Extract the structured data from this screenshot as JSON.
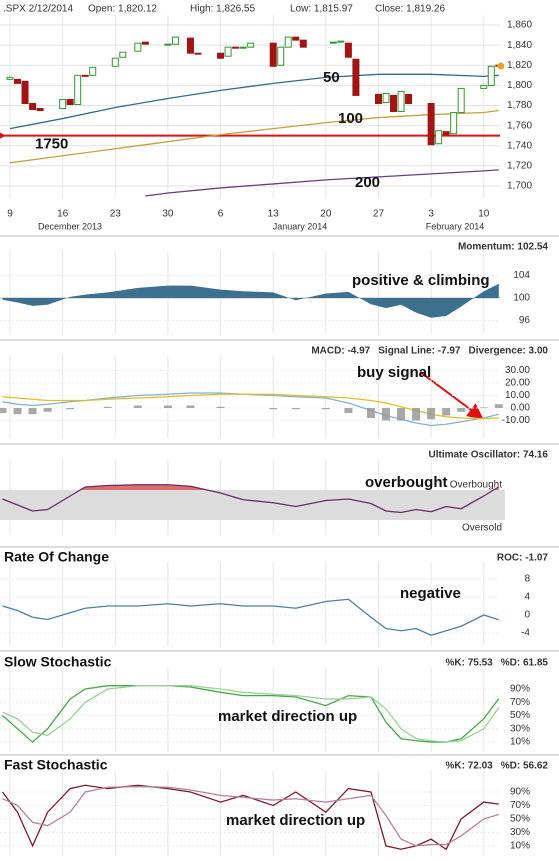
{
  "chart_data": [
    {
      "type": "candlestick",
      "title": ".SPX 2/12/2014",
      "stats": [
        "Open: 1,820.12",
        "High: 1,826.55",
        "Low: 1,815.97",
        "Close: 1,819.26"
      ],
      "x": [
        9,
        10,
        11,
        12,
        13,
        16,
        17,
        18,
        19,
        20,
        23,
        24,
        26,
        27,
        30,
        31,
        33,
        34,
        37,
        38,
        39,
        40,
        41,
        44,
        45,
        46,
        47,
        48,
        52,
        53,
        54,
        55,
        58,
        59,
        60,
        61,
        62,
        65,
        66,
        67,
        68,
        69,
        72,
        73,
        74
      ],
      "open": [
        1806,
        1806,
        1804,
        1782,
        1777,
        1777,
        1786,
        1781,
        1810,
        1810,
        1819,
        1828,
        1834,
        1843,
        1841,
        1841,
        1847,
        1832,
        1832,
        1829,
        1838,
        1838,
        1838,
        1842,
        1820,
        1838,
        1848,
        1845,
        1842,
        1843,
        1842,
        1826,
        1791,
        1783,
        1790,
        1774,
        1791,
        1782,
        1742,
        1754,
        1752,
        1773,
        1797,
        1800,
        1820.12
      ],
      "close": [
        1808,
        1802,
        1782,
        1776,
        1775,
        1786,
        1781,
        1810,
        1809,
        1818,
        1827,
        1833,
        1842,
        1841,
        1841,
        1848,
        1832,
        1831,
        1827,
        1838,
        1837,
        1838,
        1842,
        1819,
        1838,
        1848,
        1845,
        1838,
        1843,
        1844,
        1828,
        1790,
        1782,
        1792,
        1774,
        1794,
        1782,
        1741,
        1755,
        1751,
        1773,
        1797,
        1800,
        1819,
        1819.26
      ],
      "up_color": "#2e9a2e",
      "down_color": "#a31515",
      "series": [
        {
          "name": "50",
          "color": "#2f6b95",
          "x": [
            9,
            16,
            23,
            30,
            37,
            44,
            51,
            58,
            65,
            72,
            74
          ],
          "values": [
            1757,
            1767,
            1778,
            1787,
            1795,
            1802,
            1808,
            1811,
            1811,
            1809,
            1810
          ]
        },
        {
          "name": "100",
          "color": "#c9a13a",
          "x": [
            9,
            16,
            23,
            30,
            37,
            44,
            51,
            58,
            65,
            72,
            74
          ],
          "values": [
            1723,
            1730,
            1737,
            1744,
            1751,
            1757,
            1763,
            1768,
            1771,
            1773,
            1775
          ]
        },
        {
          "name": "200",
          "color": "#6a3d8a",
          "x": [
            27,
            30,
            37,
            44,
            51,
            58,
            65,
            72,
            74
          ],
          "values": [
            1690,
            1693,
            1698,
            1702,
            1706,
            1709,
            1712,
            1715,
            1716
          ]
        }
      ],
      "hline": 1750,
      "hline_color": "#e01010",
      "ylim": [
        1690,
        1870
      ],
      "yticks": [
        {
          "value": 1700,
          "label": "1,700"
        },
        {
          "value": 1720,
          "label": "1,720"
        },
        {
          "value": 1740,
          "label": "1,740"
        },
        {
          "value": 1760,
          "label": "1,760"
        },
        {
          "value": 1780,
          "label": "1,780"
        },
        {
          "value": 1800,
          "label": "1,800"
        },
        {
          "value": 1820,
          "label": "1,820"
        },
        {
          "value": 1840,
          "label": "1,840"
        },
        {
          "value": 1860,
          "label": "1,860"
        }
      ],
      "xticks": [
        {
          "value": 9,
          "label": "9"
        },
        {
          "value": 16,
          "label": "16"
        },
        {
          "value": 23,
          "label": "23"
        },
        {
          "value": 30,
          "label": "30"
        },
        {
          "value": 37,
          "label": "6"
        },
        {
          "value": 44,
          "label": "13"
        },
        {
          "value": 51,
          "label": "20"
        },
        {
          "value": 58,
          "label": "27"
        },
        {
          "value": 65,
          "label": "3"
        },
        {
          "value": 72,
          "label": "10"
        }
      ],
      "month_labels": [
        "December 2013",
        "January 2014",
        "February 2014"
      ]
    },
    {
      "type": "area",
      "baseline": 100,
      "x": [
        8,
        10,
        12,
        14,
        17,
        19,
        22,
        26,
        30,
        33,
        37,
        40,
        44,
        47,
        51,
        54,
        57,
        59,
        61,
        63,
        65,
        67,
        69,
        72,
        74
      ],
      "series": [
        {
          "name": "Momentum: 102.54",
          "color": "#3d6f8f",
          "values": [
            99.7,
            99.2,
            98.6,
            98.8,
            100.2,
            100.6,
            101.0,
            101.8,
            102.2,
            102.2,
            101.5,
            101.2,
            101.0,
            99.6,
            100.8,
            101.1,
            98.9,
            98.2,
            98.8,
            97.4,
            96.5,
            96.8,
            98.5,
            101.2,
            102.54
          ]
        }
      ],
      "ylim": [
        93.5,
        107
      ],
      "yticks": [
        96,
        100,
        104
      ],
      "annotations": [
        "positive & climbing"
      ]
    },
    {
      "type": "line",
      "x": [
        8,
        10,
        12,
        14,
        17,
        19,
        22,
        26,
        30,
        33,
        37,
        40,
        44,
        47,
        51,
        54,
        57,
        59,
        61,
        63,
        65,
        67,
        69,
        72,
        74
      ],
      "series": [
        {
          "name": "MACD: -4.97",
          "color": "#7fb2d8",
          "values": [
            5,
            3,
            2,
            3,
            5,
            6,
            8,
            10,
            11,
            12,
            12,
            11,
            10,
            9,
            8,
            4,
            -2,
            -6,
            -9,
            -12,
            -14,
            -13,
            -11,
            -8,
            -4.97
          ]
        },
        {
          "name": "Signal Line: -7.97",
          "color": "#e3bd22",
          "values": [
            9,
            8,
            7,
            6,
            6,
            6,
            7,
            8,
            9,
            10,
            11,
            11,
            11,
            10,
            9,
            8,
            6,
            4,
            1,
            -2,
            -5,
            -7,
            -8,
            -8.5,
            -7.97
          ]
        },
        {
          "name": "Divergence: 3.00",
          "color": "#999999",
          "style": "bar",
          "values": [
            -4,
            -5,
            -5,
            -3,
            -1,
            0,
            1,
            2,
            2,
            2,
            1,
            0,
            -1,
            -1,
            -1,
            -4,
            -8,
            -10,
            -10,
            -10,
            -9,
            -6,
            -3,
            0.5,
            3.0
          ]
        }
      ],
      "ylim": [
        -24,
        36
      ],
      "yticks": [
        {
          "value": 30,
          "label": "30.00"
        },
        {
          "value": 20,
          "label": "20.00"
        },
        {
          "value": 10,
          "label": "10.00"
        },
        {
          "value": 0,
          "label": "0.00"
        },
        {
          "value": -10,
          "label": "-10.00"
        }
      ],
      "annotations": [
        "buy signal"
      ]
    },
    {
      "type": "line",
      "x": [
        8,
        10,
        12,
        14,
        17,
        19,
        22,
        26,
        30,
        33,
        37,
        40,
        44,
        47,
        51,
        54,
        57,
        59,
        61,
        63,
        65,
        67,
        69,
        72,
        74
      ],
      "series": [
        {
          "name": "Ultimate Oscillator: 74.16",
          "color": "#6a2a6a",
          "values": [
            58,
            50,
            42,
            44,
            62,
            74,
            76,
            77,
            77,
            75,
            66,
            57,
            53,
            48,
            56,
            58,
            52,
            42,
            40,
            44,
            41,
            48,
            45,
            62,
            74.16
          ]
        }
      ],
      "ylim": [
        10,
        100
      ],
      "thresholds": [
        {
          "value": 70,
          "label": "Overbought",
          "color": "#d9534f"
        },
        {
          "value": 30,
          "label": "Oversold",
          "color": "#6cbf6c"
        }
      ],
      "annotations": [
        "overbought"
      ]
    },
    {
      "type": "line",
      "title": "Rate Of Change",
      "x": [
        8,
        10,
        12,
        14,
        17,
        19,
        22,
        26,
        30,
        33,
        37,
        40,
        44,
        47,
        51,
        54,
        57,
        59,
        61,
        63,
        65,
        67,
        69,
        72,
        74
      ],
      "series": [
        {
          "name": "ROC: -1.07",
          "color": "#4a7fa8",
          "values": [
            2,
            1,
            -0.5,
            -1,
            0.5,
            1.5,
            2,
            2,
            2.5,
            2,
            2.5,
            2,
            2,
            1.5,
            3,
            3.5,
            -0.5,
            -3,
            -3.5,
            -3,
            -4.5,
            -3.5,
            -2.5,
            0,
            -1.07
          ]
        }
      ],
      "ylim": [
        -7,
        10
      ],
      "yticks": [
        8,
        4,
        0,
        -4
      ],
      "annotations": [
        "negative"
      ]
    },
    {
      "type": "line",
      "title": "Slow Stochastic",
      "x": [
        8,
        10,
        12,
        14,
        17,
        19,
        22,
        26,
        30,
        33,
        37,
        40,
        44,
        47,
        51,
        54,
        57,
        59,
        61,
        63,
        65,
        67,
        69,
        72,
        74
      ],
      "series": [
        {
          "name": "%K: 75.53",
          "color": "#45a845",
          "values": [
            50,
            30,
            10,
            30,
            75,
            90,
            95,
            95,
            95,
            93,
            85,
            80,
            80,
            78,
            65,
            80,
            78,
            40,
            15,
            12,
            10,
            10,
            15,
            45,
            75.53
          ]
        },
        {
          "name": "%D: 61.85",
          "color": "#9ad29a",
          "values": [
            55,
            45,
            25,
            20,
            45,
            70,
            90,
            95,
            95,
            95,
            90,
            85,
            82,
            80,
            75,
            75,
            78,
            60,
            30,
            15,
            12,
            10,
            12,
            30,
            61.85
          ]
        }
      ],
      "ylim": [
        -5,
        110
      ],
      "yticks": [
        {
          "value": 90,
          "label": "90%"
        },
        {
          "value": 70,
          "label": "70%"
        },
        {
          "value": 50,
          "label": "50%"
        },
        {
          "value": 30,
          "label": "30%"
        },
        {
          "value": 10,
          "label": "10%"
        }
      ],
      "annotations": [
        "market direction up"
      ]
    },
    {
      "type": "line",
      "title": "Fast Stochastic",
      "x": [
        8,
        10,
        12,
        14,
        17,
        19,
        22,
        26,
        30,
        33,
        37,
        40,
        44,
        47,
        51,
        54,
        57,
        59,
        61,
        63,
        65,
        67,
        69,
        72,
        74
      ],
      "series": [
        {
          "name": "%K: 72.03",
          "color": "#7b1c2c",
          "values": [
            90,
            60,
            10,
            60,
            95,
            100,
            95,
            100,
            95,
            90,
            75,
            85,
            70,
            90,
            60,
            95,
            90,
            10,
            5,
            10,
            20,
            5,
            50,
            75,
            72.03
          ]
        },
        {
          "name": "%D: 56.62",
          "color": "#b67fa0",
          "values": [
            80,
            70,
            45,
            40,
            60,
            90,
            97,
            98,
            97,
            93,
            85,
            82,
            78,
            80,
            75,
            80,
            85,
            55,
            20,
            10,
            12,
            12,
            25,
            50,
            56.62
          ]
        }
      ],
      "ylim": [
        -5,
        110
      ],
      "yticks": [
        {
          "value": 90,
          "label": "90%"
        },
        {
          "value": 70,
          "label": "70%"
        },
        {
          "value": 50,
          "label": "50%"
        },
        {
          "value": 30,
          "label": "30%"
        },
        {
          "value": 10,
          "label": "10%"
        }
      ],
      "annotations": [
        "market direction up"
      ]
    }
  ]
}
